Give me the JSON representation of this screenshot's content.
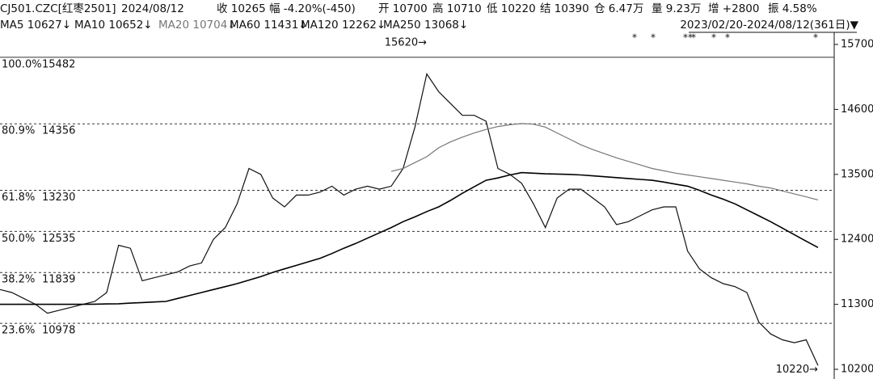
{
  "header": {
    "row1": [
      "CJ501.CZC[红枣2501]",
      "2024/08/12",
      "收 10265",
      "幅 -4.20%(-450)",
      "开 10700",
      "高 10710",
      "低 10220",
      "结 10390",
      "仓 6.47万",
      "量 9.23万",
      "增 +2800",
      "振 4.58%"
    ],
    "row2": [
      "MA5 10627↓",
      "MA10 10652↓",
      "MA20 10704↓",
      "MA60 11431↓",
      "MA120 12262↓",
      "MA250 13068↓"
    ],
    "range": "2023/02/20-2024/08/12(361日)▼"
  },
  "chart_data": {
    "type": "line",
    "ylim": [
      10036,
      15905
    ],
    "yticks": [
      15700,
      14600,
      13500,
      12400,
      11300,
      10200
    ],
    "levels": [
      {
        "label": "100.0%",
        "value": 15482
      },
      {
        "label": "80.9%",
        "value": 14356
      },
      {
        "label": "61.8%",
        "value": 13230
      },
      {
        "label": "50.0%",
        "value": 12535
      },
      {
        "label": "38.2%",
        "value": 11839
      },
      {
        "label": "23.6%",
        "value": 10978
      }
    ],
    "annotations": [
      {
        "text": "15620→",
        "value": 15620,
        "index": 36
      },
      {
        "text": "10220→",
        "value": 10220,
        "index": 69
      }
    ],
    "series": [
      {
        "color": "#111111",
        "width": 1.2,
        "values": [
          11550,
          11500,
          11400,
          11300,
          11150,
          11200,
          11250,
          11300,
          11350,
          11500,
          12300,
          12250,
          11700,
          11750,
          11800,
          11850,
          11950,
          12000,
          12400,
          12600,
          13000,
          13600,
          13500,
          13100,
          12950,
          13150,
          13150,
          13200,
          13300,
          13150,
          13250,
          13300,
          13250,
          13300,
          13600,
          14300,
          15200,
          14900,
          14700,
          14500,
          14500,
          14400,
          13600,
          13500,
          13350,
          13000,
          12600,
          13100,
          13250,
          13250,
          13100,
          12950,
          12650,
          12700,
          12800,
          12900,
          12950,
          12950,
          12200,
          11900,
          11750,
          11650,
          11600,
          11500,
          11000,
          10800,
          10700,
          10650,
          10700,
          10265
        ]
      },
      {
        "color": "#000000",
        "width": 1.6,
        "values": [
          11300,
          11300,
          11300,
          11300,
          11300,
          11300,
          11300,
          11300,
          11303,
          11307,
          11310,
          11320,
          11330,
          11340,
          11350,
          11400,
          11450,
          11500,
          11550,
          11600,
          11650,
          11710,
          11770,
          11840,
          11900,
          11960,
          12020,
          12080,
          12160,
          12250,
          12330,
          12420,
          12510,
          12600,
          12700,
          12780,
          12870,
          12950,
          13060,
          13180,
          13290,
          13400,
          13440,
          13490,
          13530,
          13520,
          13510,
          13505,
          13500,
          13490,
          13475,
          13460,
          13445,
          13430,
          13415,
          13400,
          13370,
          13335,
          13300,
          13230,
          13150,
          13080,
          13000,
          12900,
          12800,
          12700,
          12590,
          12480,
          12370,
          12262
        ]
      },
      {
        "color": "#777777",
        "width": 1.2,
        "values": [
          null,
          null,
          null,
          null,
          null,
          null,
          null,
          null,
          null,
          null,
          null,
          null,
          null,
          null,
          null,
          null,
          null,
          null,
          null,
          null,
          null,
          null,
          null,
          null,
          null,
          null,
          null,
          null,
          null,
          null,
          null,
          null,
          null,
          13550,
          13600,
          13700,
          13800,
          13950,
          14050,
          14130,
          14200,
          14260,
          14310,
          14340,
          14360,
          14350,
          14300,
          14200,
          14100,
          14000,
          13920,
          13850,
          13780,
          13720,
          13660,
          13600,
          13560,
          13520,
          13490,
          13460,
          13430,
          13400,
          13370,
          13340,
          13300,
          13270,
          13220,
          13170,
          13120,
          13068
        ]
      }
    ]
  }
}
